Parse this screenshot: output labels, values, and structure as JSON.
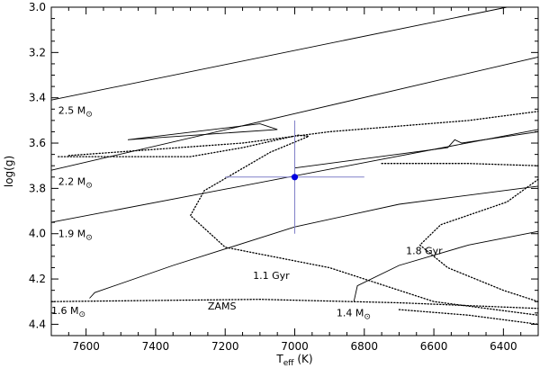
{
  "chart_data": {
    "type": "line",
    "xlabel": {
      "main": "T",
      "sub": "eff",
      "unit": "(K)"
    },
    "ylabel": "log(g)",
    "xlim": [
      7700,
      6300
    ],
    "ylim": [
      3.0,
      4.45
    ],
    "x_reversed": true,
    "y_reversed": true,
    "grid": false,
    "xticks": [
      7600,
      7400,
      7200,
      7000,
      6800,
      6600,
      6400
    ],
    "yticks": [
      3.0,
      3.2,
      3.4,
      3.6,
      3.8,
      4.0,
      4.2,
      4.4
    ],
    "colors": {
      "axes": "#000000",
      "tracks": "#000000",
      "star": "#0000e0",
      "errorbar": "#8080c8"
    },
    "tracks": [
      {
        "name": "2.5 M⊙",
        "style": "solid",
        "points": [
          [
            7700,
            3.41
          ],
          [
            6390,
            3.0
          ]
        ]
      },
      {
        "name": "2.5 M⊙ loop",
        "style": "solid",
        "points": [
          [
            7480,
            3.585
          ],
          [
            7050,
            3.54
          ],
          [
            7100,
            3.515
          ],
          [
            7480,
            3.585
          ]
        ]
      },
      {
        "name": "2.2 M⊙",
        "style": "solid",
        "points": [
          [
            7700,
            3.72
          ],
          [
            6300,
            3.22
          ]
        ]
      },
      {
        "name": "2.2 M⊙ hook",
        "style": "solid",
        "points": [
          [
            7000,
            3.71
          ],
          [
            6560,
            3.62
          ],
          [
            6540,
            3.585
          ],
          [
            6520,
            3.6
          ],
          [
            6300,
            3.55
          ]
        ]
      },
      {
        "name": "1.9 M⊙",
        "style": "solid",
        "points": [
          [
            7700,
            3.95
          ],
          [
            6300,
            3.54
          ]
        ]
      },
      {
        "name": "1.6 M⊙",
        "style": "solid",
        "points": [
          [
            7590,
            4.285
          ],
          [
            7575,
            4.26
          ],
          [
            7350,
            4.14
          ],
          [
            7000,
            3.97
          ],
          [
            6700,
            3.87
          ],
          [
            6300,
            3.79
          ]
        ]
      },
      {
        "name": "1.4 M⊙",
        "style": "solid",
        "points": [
          [
            6830,
            4.3
          ],
          [
            6820,
            4.23
          ],
          [
            6700,
            4.14
          ],
          [
            6500,
            4.05
          ],
          [
            6300,
            3.99
          ]
        ]
      },
      {
        "name": "ZAMS",
        "style": "dotted",
        "points": [
          [
            7700,
            4.3
          ],
          [
            7100,
            4.29
          ],
          [
            6700,
            4.305
          ],
          [
            6300,
            4.33
          ]
        ]
      },
      {
        "name": "1.1 Gyr",
        "style": "dotted",
        "points": [
          [
            7680,
            3.66
          ],
          [
            7300,
            3.66
          ],
          [
            7150,
            3.62
          ],
          [
            6990,
            3.565
          ],
          [
            6960,
            3.57
          ],
          [
            7070,
            3.64
          ],
          [
            7260,
            3.81
          ],
          [
            7300,
            3.92
          ],
          [
            7200,
            4.06
          ],
          [
            6900,
            4.15
          ],
          [
            6600,
            4.3
          ],
          [
            6400,
            4.34
          ],
          [
            6300,
            4.36
          ]
        ]
      },
      {
        "name": "1.1 Gyr upper",
        "style": "dotted",
        "points": [
          [
            7650,
            3.655
          ],
          [
            7150,
            3.6
          ],
          [
            6900,
            3.55
          ],
          [
            6500,
            3.5
          ],
          [
            6300,
            3.46
          ]
        ]
      },
      {
        "name": "1.8 Gyr",
        "style": "dotted",
        "points": [
          [
            6300,
            3.76
          ],
          [
            6390,
            3.86
          ],
          [
            6580,
            3.96
          ],
          [
            6640,
            4.05
          ],
          [
            6560,
            4.15
          ],
          [
            6400,
            4.25
          ],
          [
            6300,
            4.3
          ]
        ]
      },
      {
        "name": "1.8 Gyr lower",
        "style": "dotted",
        "points": [
          [
            6700,
            4.335
          ],
          [
            6500,
            4.36
          ],
          [
            6300,
            4.4
          ]
        ]
      },
      {
        "name": "1.8 Gyr upper",
        "style": "dotted",
        "points": [
          [
            6750,
            3.69
          ],
          [
            6500,
            3.69
          ],
          [
            6300,
            3.7
          ]
        ]
      }
    ],
    "star": {
      "teff": 7000,
      "logg": 3.75,
      "teff_err": 200,
      "logg_err": 0.25
    },
    "annotations": [
      {
        "text": "2.5 M",
        "sym": "⊙",
        "x": 7680,
        "y": 3.47
      },
      {
        "text": "2.2 M",
        "sym": "⊙",
        "x": 7680,
        "y": 3.785
      },
      {
        "text": "1.9 M",
        "sym": "⊙",
        "x": 7680,
        "y": 4.015
      },
      {
        "text": "1.6 M",
        "sym": "⊙",
        "x": 7700,
        "y": 4.355
      },
      {
        "text": "1.4 M",
        "sym": "⊙",
        "x": 6880,
        "y": 4.365
      },
      {
        "text": "ZAMS",
        "sym": "",
        "x": 7250,
        "y": 4.335
      },
      {
        "text": "1.1 Gyr",
        "sym": "",
        "x": 7120,
        "y": 4.2
      },
      {
        "text": "1.8 Gyr",
        "sym": "",
        "x": 6680,
        "y": 4.09
      }
    ]
  }
}
